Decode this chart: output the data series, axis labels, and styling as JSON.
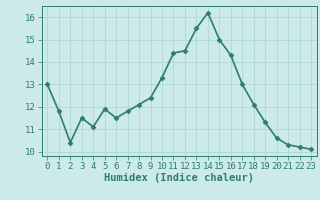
{
  "x": [
    0,
    1,
    2,
    3,
    4,
    5,
    6,
    7,
    8,
    9,
    10,
    11,
    12,
    13,
    14,
    15,
    16,
    17,
    18,
    19,
    20,
    21,
    22,
    23
  ],
  "y": [
    13.0,
    11.8,
    10.4,
    11.5,
    11.1,
    11.9,
    11.5,
    11.8,
    12.1,
    12.4,
    13.3,
    14.4,
    14.5,
    15.5,
    16.2,
    15.0,
    14.3,
    13.0,
    12.1,
    11.3,
    10.6,
    10.3,
    10.2,
    10.1
  ],
  "line_color": "#2e7d6e",
  "marker": "D",
  "marker_size": 2.5,
  "bg_color": "#cceae7",
  "grid_color": "#aad4d0",
  "xlabel": "Humidex (Indice chaleur)",
  "ylim": [
    9.8,
    16.5
  ],
  "xlim": [
    -0.5,
    23.5
  ],
  "yticks": [
    10,
    11,
    12,
    13,
    14,
    15,
    16
  ],
  "xticks": [
    0,
    1,
    2,
    3,
    4,
    5,
    6,
    7,
    8,
    9,
    10,
    11,
    12,
    13,
    14,
    15,
    16,
    17,
    18,
    19,
    20,
    21,
    22,
    23
  ],
  "tick_color": "#2e7d6e",
  "label_color": "#2e7d6e",
  "font_size": 6.5,
  "xlabel_fontsize": 7.5,
  "line_width": 1.2
}
